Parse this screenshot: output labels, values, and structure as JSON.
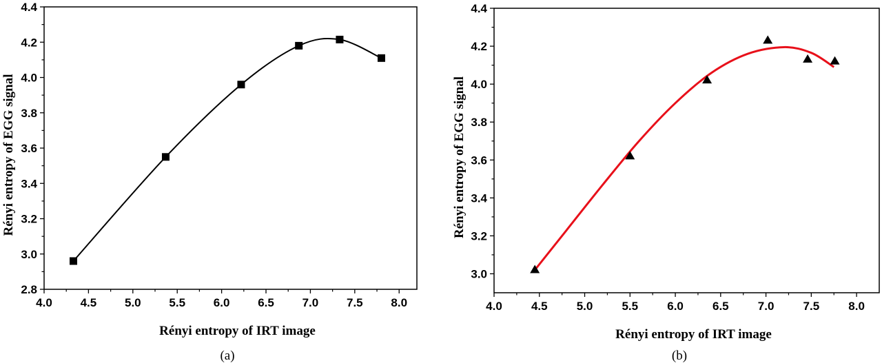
{
  "chart_data": [
    {
      "type": "scatter",
      "panel_label": "(a)",
      "xlabel": "Rényi entropy of IRT image",
      "ylabel": "Rényi entropy of EGG signal",
      "xlim": [
        4.0,
        8.2
      ],
      "ylim": [
        2.8,
        4.4
      ],
      "x_ticks": [
        "4.0",
        "4.5",
        "5.0",
        "5.5",
        "6.0",
        "6.5",
        "7.0",
        "7.5",
        "8.0"
      ],
      "y_ticks": [
        "2.8",
        "3.0",
        "3.2",
        "3.4",
        "3.6",
        "3.8",
        "4.0",
        "4.2",
        "4.4"
      ],
      "marker": "square",
      "series": [
        {
          "x": [
            4.33,
            5.37,
            6.22,
            6.87,
            7.33,
            7.8
          ],
          "y": [
            2.96,
            3.55,
            3.96,
            4.18,
            4.215,
            4.11
          ],
          "fit": "smooth curve",
          "color": "#000000"
        }
      ],
      "grid": false
    },
    {
      "type": "scatter",
      "panel_label": "(b)",
      "xlabel": "Rényi entropy of IRT image",
      "ylabel": "Rényi entropy of EGG signal",
      "xlim": [
        4.0,
        8.25
      ],
      "ylim": [
        2.9,
        4.4
      ],
      "x_ticks": [
        "4.0",
        "4.5",
        "5.0",
        "5.5",
        "6.0",
        "6.5",
        "7.0",
        "7.5",
        "8.0"
      ],
      "y_ticks": [
        "3.0",
        "3.2",
        "3.4",
        "3.6",
        "3.8",
        "4.0",
        "4.2",
        "4.4"
      ],
      "marker": "triangle",
      "series": [
        {
          "x": [
            4.45,
            5.5,
            6.35,
            7.02,
            7.46,
            7.76
          ],
          "y": [
            3.02,
            3.62,
            4.02,
            4.23,
            4.13,
            4.12
          ],
          "fit": "polynomial curve",
          "fit_x": [
            4.45,
            4.8,
            5.2,
            5.6,
            6.0,
            6.4,
            6.8,
            7.2,
            7.5,
            7.75
          ],
          "fit_y": [
            3.02,
            3.23,
            3.47,
            3.7,
            3.9,
            4.06,
            4.16,
            4.195,
            4.165,
            4.09
          ],
          "fit_color": "#e8101a",
          "color": "#000000"
        }
      ],
      "grid": false
    }
  ]
}
